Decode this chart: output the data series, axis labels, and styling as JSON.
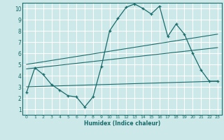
{
  "title": "",
  "xlabel": "Humidex (Indice chaleur)",
  "bg_color": "#cce8e8",
  "grid_color": "#ffffff",
  "line_color": "#1a6b6b",
  "xlim": [
    -0.5,
    23.5
  ],
  "ylim": [
    0.5,
    10.5
  ],
  "xticks": [
    0,
    1,
    2,
    3,
    4,
    5,
    6,
    7,
    8,
    9,
    10,
    11,
    12,
    13,
    14,
    15,
    16,
    17,
    18,
    19,
    20,
    21,
    22,
    23
  ],
  "yticks": [
    1,
    2,
    3,
    4,
    5,
    6,
    7,
    8,
    9,
    10
  ],
  "curve1_x": [
    0,
    1,
    2,
    3,
    4,
    5,
    6,
    7,
    8,
    9,
    10,
    11,
    12,
    13,
    14,
    15,
    16,
    17,
    18,
    19,
    20,
    21,
    22,
    23
  ],
  "curve1_y": [
    2.5,
    4.7,
    4.1,
    3.2,
    2.7,
    2.2,
    2.1,
    1.2,
    2.1,
    4.8,
    8.0,
    9.1,
    10.1,
    10.4,
    10.0,
    9.5,
    10.2,
    7.5,
    8.6,
    7.7,
    6.0,
    4.5,
    3.5,
    3.5
  ],
  "line1_x": [
    0,
    23
  ],
  "line1_y": [
    3.0,
    3.5
  ],
  "line2_x": [
    0,
    23
  ],
  "line2_y": [
    4.6,
    6.5
  ],
  "line3_x": [
    0,
    23
  ],
  "line3_y": [
    5.0,
    7.7
  ]
}
